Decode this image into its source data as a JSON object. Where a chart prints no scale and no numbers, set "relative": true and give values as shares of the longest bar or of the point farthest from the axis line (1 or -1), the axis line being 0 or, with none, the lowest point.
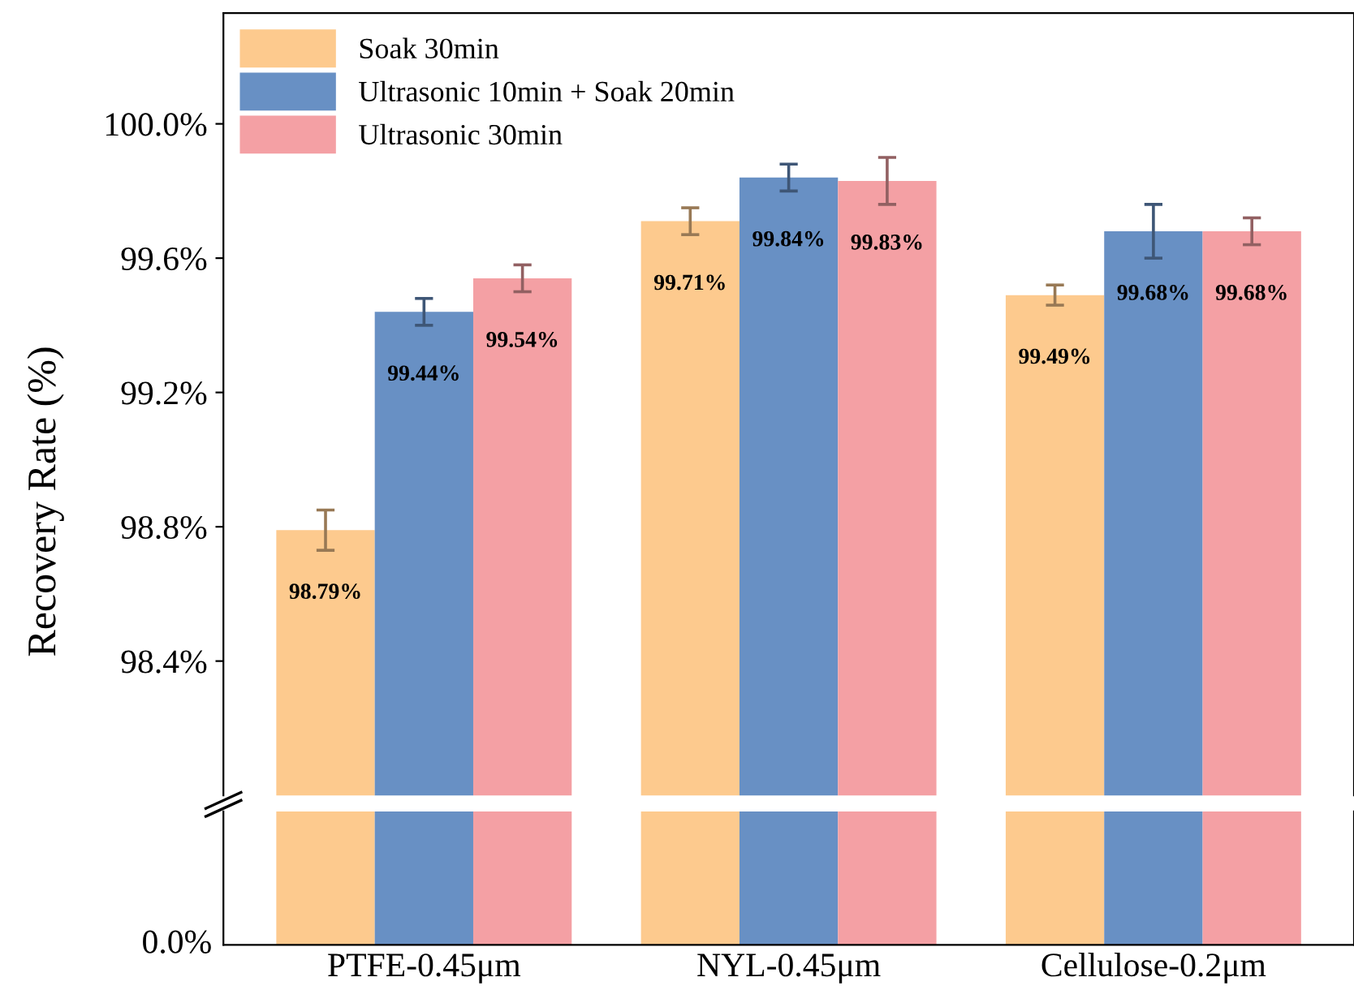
{
  "chart_data": [
    {
      "type": "bar",
      "ylabel": "Recovery Rate (%)",
      "categories": [
        "PTFE-0.45μm",
        "NYL-0.45μm",
        "Cellulose-0.2μm"
      ],
      "ylim": [
        98.0,
        100.33
      ],
      "yticks": [
        {
          "value": 98.4,
          "label": "98.4%"
        },
        {
          "value": 98.8,
          "label": "98.8%"
        },
        {
          "value": 99.2,
          "label": "99.2%"
        },
        {
          "value": 99.6,
          "label": "99.6%"
        },
        {
          "value": 100.0,
          "label": "100.0%"
        }
      ],
      "tick_labels": "y",
      "grid": false,
      "legend": "top left",
      "series": [
        {
          "name": "Soak 30min",
          "color": "#fdca8e",
          "values": [
            98.79,
            99.71,
            99.49
          ],
          "errors": [
            0.06,
            0.04,
            0.03
          ],
          "value_labels": [
            "98.79%",
            "99.71%",
            "99.49%"
          ]
        },
        {
          "name": "Ultrasonic 10min + Soak 20min",
          "color": "#6890c4",
          "values": [
            99.44,
            99.84,
            99.68
          ],
          "errors": [
            0.04,
            0.04,
            0.08
          ],
          "value_labels": [
            "99.44%",
            "99.84%",
            "99.68%"
          ]
        },
        {
          "name": "Ultrasonic 30min",
          "color": "#f4a0a4",
          "values": [
            99.54,
            99.83,
            99.68
          ],
          "errors": [
            0.04,
            0.07,
            0.04
          ],
          "value_labels": [
            "99.54%",
            "99.83%",
            "99.68%"
          ]
        }
      ]
    },
    {
      "type": "bar",
      "relative": true,
      "tick_labels": "x",
      "grid": false,
      "annotations": [
        "0.0%"
      ],
      "series": [
        {
          "color": "#fdca8e",
          "values": [
            1,
            1,
            1
          ]
        },
        {
          "color": "#6890c4",
          "values": [
            1,
            1,
            1
          ]
        },
        {
          "color": "#f4a0a4",
          "values": [
            1,
            1,
            1
          ]
        }
      ]
    }
  ]
}
